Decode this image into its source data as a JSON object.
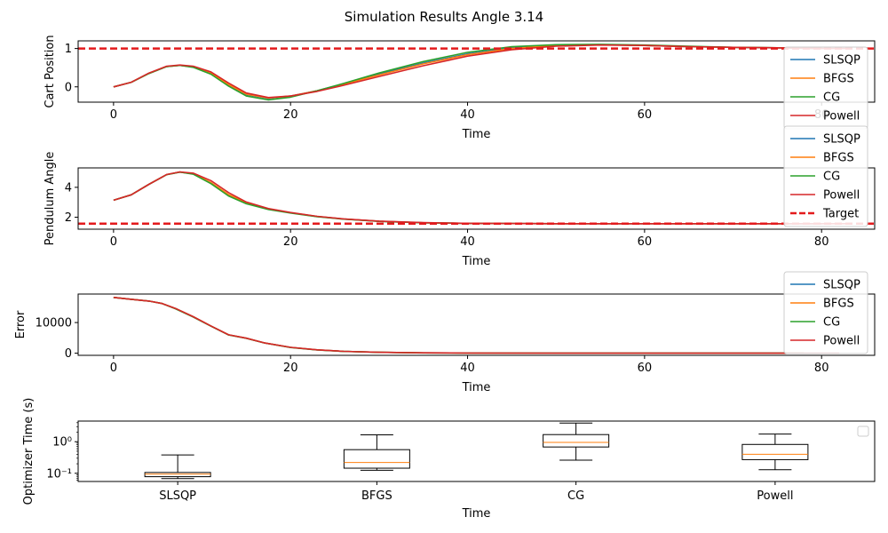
{
  "figure": {
    "title": "Simulation Results Angle 3.14"
  },
  "colors": {
    "SLSQP": "#1f77b4",
    "BFGS": "#ff7f0e",
    "CG": "#2ca02c",
    "Powell": "#d62728",
    "target": "#e31a1c",
    "box": "#000000",
    "median": "#ff7f0e"
  },
  "chart_data": [
    {
      "type": "line",
      "xlabel": "Time",
      "ylabel": "Cart Position",
      "xlim": [
        -4,
        86
      ],
      "ylim": [
        -0.4,
        1.2
      ],
      "xticks": [
        0,
        20,
        40,
        60,
        80
      ],
      "yticks": [
        0,
        1
      ],
      "legend": [
        "SLSQP",
        "BFGS",
        "CG",
        "Powell"
      ],
      "legend_position": "right",
      "target": {
        "name": "Target",
        "value": 1.0
      },
      "series": [
        {
          "name": "SLSQP",
          "x": [
            0,
            2,
            4,
            6,
            7.5,
            9,
            11,
            13,
            15,
            17.5,
            20,
            23,
            26,
            30,
            35,
            40,
            45,
            50,
            55,
            60,
            65,
            70,
            75,
            80
          ],
          "y": [
            0,
            0.12,
            0.35,
            0.53,
            0.56,
            0.52,
            0.35,
            0.05,
            -0.2,
            -0.3,
            -0.24,
            -0.1,
            0.08,
            0.33,
            0.62,
            0.86,
            1.02,
            1.09,
            1.1,
            1.08,
            1.05,
            1.03,
            1.02,
            1.0
          ]
        },
        {
          "name": "BFGS",
          "x": [
            0,
            2,
            4,
            6,
            7.5,
            9,
            11,
            13,
            15,
            17.5,
            20,
            23,
            26,
            30,
            35,
            40,
            45,
            50,
            55,
            60,
            65,
            70,
            75,
            80
          ],
          "y": [
            0,
            0.12,
            0.35,
            0.53,
            0.56,
            0.52,
            0.36,
            0.06,
            -0.19,
            -0.29,
            -0.24,
            -0.1,
            0.07,
            0.31,
            0.6,
            0.84,
            1.0,
            1.08,
            1.1,
            1.08,
            1.05,
            1.03,
            1.02,
            1.0
          ]
        },
        {
          "name": "CG",
          "x": [
            0,
            2,
            4,
            6,
            7.5,
            9,
            11,
            13,
            15,
            17.5,
            20,
            23,
            26,
            30,
            35,
            40,
            45,
            50,
            55,
            60,
            65,
            70,
            75,
            80
          ],
          "y": [
            0,
            0.12,
            0.35,
            0.53,
            0.56,
            0.51,
            0.33,
            0.02,
            -0.24,
            -0.34,
            -0.27,
            -0.1,
            0.09,
            0.36,
            0.66,
            0.9,
            1.05,
            1.1,
            1.11,
            1.09,
            1.06,
            1.03,
            1.02,
            1.0
          ]
        },
        {
          "name": "Powell",
          "x": [
            0,
            2,
            4,
            6,
            7.5,
            9,
            11,
            13,
            15,
            17.5,
            20,
            23,
            26,
            30,
            35,
            40,
            45,
            50,
            55,
            60,
            65,
            70,
            75,
            80,
            83
          ],
          "y": [
            0,
            0.12,
            0.36,
            0.54,
            0.57,
            0.54,
            0.39,
            0.1,
            -0.16,
            -0.28,
            -0.24,
            -0.12,
            0.04,
            0.27,
            0.55,
            0.8,
            0.97,
            1.06,
            1.09,
            1.08,
            1.05,
            1.03,
            1.02,
            1.0,
            1.0
          ]
        }
      ]
    },
    {
      "type": "line",
      "xlabel": "Time",
      "ylabel": "Pendulum Angle",
      "xlim": [
        -4,
        86
      ],
      "ylim": [
        1.2,
        5.3
      ],
      "xticks": [
        0,
        20,
        40,
        60,
        80
      ],
      "yticks": [
        2,
        4
      ],
      "legend": [
        "SLSQP",
        "BFGS",
        "CG",
        "Powell",
        "Target"
      ],
      "legend_position": "right",
      "target": {
        "name": "Target",
        "value": 1.57
      },
      "series": [
        {
          "name": "SLSQP",
          "x": [
            0,
            2,
            4,
            6,
            7.5,
            9,
            11,
            13,
            15,
            17.5,
            20,
            23,
            26,
            30,
            35,
            40,
            50,
            60,
            70,
            80
          ],
          "y": [
            3.14,
            3.5,
            4.2,
            4.85,
            5.02,
            4.9,
            4.3,
            3.5,
            2.95,
            2.55,
            2.3,
            2.05,
            1.88,
            1.73,
            1.63,
            1.59,
            1.57,
            1.57,
            1.57,
            1.57
          ]
        },
        {
          "name": "BFGS",
          "x": [
            0,
            2,
            4,
            6,
            7.5,
            9,
            11,
            13,
            15,
            17.5,
            20,
            23,
            26,
            30,
            35,
            40,
            50,
            60,
            70,
            80
          ],
          "y": [
            3.14,
            3.5,
            4.2,
            4.85,
            5.02,
            4.9,
            4.32,
            3.52,
            2.96,
            2.56,
            2.3,
            2.05,
            1.88,
            1.73,
            1.63,
            1.59,
            1.57,
            1.57,
            1.57,
            1.57
          ]
        },
        {
          "name": "CG",
          "x": [
            0,
            2,
            4,
            6,
            7.5,
            9,
            11,
            13,
            15,
            17.5,
            20,
            23,
            26,
            30,
            35,
            40,
            50,
            60,
            70,
            80
          ],
          "y": [
            3.14,
            3.5,
            4.2,
            4.85,
            5.02,
            4.88,
            4.25,
            3.42,
            2.9,
            2.52,
            2.28,
            2.04,
            1.87,
            1.72,
            1.63,
            1.59,
            1.57,
            1.57,
            1.57,
            1.57
          ]
        },
        {
          "name": "Powell",
          "x": [
            0,
            2,
            4,
            6,
            7.5,
            9,
            11,
            13,
            15,
            17.5,
            20,
            23,
            26,
            30,
            35,
            40,
            50,
            60,
            70,
            83
          ],
          "y": [
            3.14,
            3.5,
            4.2,
            4.86,
            5.03,
            4.95,
            4.45,
            3.65,
            3.02,
            2.58,
            2.32,
            2.06,
            1.89,
            1.74,
            1.64,
            1.59,
            1.57,
            1.57,
            1.57,
            1.57
          ]
        }
      ]
    },
    {
      "type": "line",
      "xlabel": "Time",
      "ylabel": "Error",
      "xlim": [
        -4,
        86
      ],
      "ylim": [
        -700,
        19300
      ],
      "xticks": [
        0,
        20,
        40,
        60,
        80
      ],
      "yticks": [
        0,
        10000
      ],
      "legend": [
        "SLSQP",
        "BFGS",
        "CG",
        "Powell"
      ],
      "legend_position": "upper right",
      "series": [
        {
          "name": "SLSQP",
          "x": [
            0,
            2,
            4,
            5.5,
            7,
            9,
            11,
            13,
            15,
            17,
            20,
            23,
            26,
            30,
            35,
            40,
            50,
            60,
            70,
            78
          ],
          "y": [
            18200,
            17600,
            17000,
            16200,
            14600,
            11900,
            8900,
            6000,
            4900,
            3400,
            1900,
            1100,
            600,
            300,
            100,
            50,
            10,
            5,
            0,
            0
          ]
        },
        {
          "name": "BFGS",
          "x": [
            0,
            2,
            4,
            5.5,
            7,
            9,
            11,
            13,
            15,
            17,
            20,
            23,
            26,
            30,
            35,
            40,
            50,
            60,
            70,
            78
          ],
          "y": [
            18200,
            17600,
            17000,
            16200,
            14600,
            11900,
            8900,
            6000,
            4900,
            3400,
            1900,
            1100,
            600,
            300,
            100,
            50,
            10,
            5,
            0,
            0
          ]
        },
        {
          "name": "CG",
          "x": [
            0,
            2,
            4,
            5.5,
            7,
            9,
            11,
            13,
            15,
            17,
            20,
            23,
            26,
            30,
            35,
            40,
            50,
            60,
            70,
            78
          ],
          "y": [
            18200,
            17600,
            17000,
            16200,
            14500,
            11800,
            8800,
            5950,
            4850,
            3350,
            1850,
            1050,
            580,
            280,
            90,
            40,
            10,
            5,
            0,
            0
          ]
        },
        {
          "name": "Powell",
          "x": [
            0,
            2,
            4,
            5.5,
            7,
            9,
            11,
            13,
            15,
            17,
            20,
            23,
            26,
            30,
            35,
            40,
            50,
            60,
            70,
            82
          ],
          "y": [
            18200,
            17600,
            17000,
            16200,
            14600,
            11900,
            8900,
            6000,
            4900,
            3400,
            1900,
            1100,
            600,
            300,
            100,
            50,
            10,
            5,
            0,
            0
          ]
        }
      ]
    },
    {
      "type": "box",
      "xlabel": "Time",
      "ylabel": "Optimizer Time (s)",
      "yscale": "log",
      "ylim": [
        0.055,
        4.5
      ],
      "yticks": [
        0.1,
        1
      ],
      "ytick_labels": [
        "10⁻¹",
        "10⁰"
      ],
      "categories": [
        "SLSQP",
        "BFGS",
        "CG",
        "Powell"
      ],
      "legend_position": "upper right (empty)",
      "boxes": [
        {
          "name": "SLSQP",
          "whislo": 0.068,
          "q1": 0.078,
          "med": 0.094,
          "q3": 0.106,
          "whishi": 0.38
        },
        {
          "name": "BFGS",
          "whislo": 0.125,
          "q1": 0.145,
          "med": 0.22,
          "q3": 0.56,
          "whishi": 1.65
        },
        {
          "name": "CG",
          "whislo": 0.26,
          "q1": 0.68,
          "med": 0.95,
          "q3": 1.68,
          "whishi": 3.9
        },
        {
          "name": "Powell",
          "whislo": 0.13,
          "q1": 0.27,
          "med": 0.4,
          "q3": 0.82,
          "whishi": 1.75
        }
      ]
    }
  ]
}
